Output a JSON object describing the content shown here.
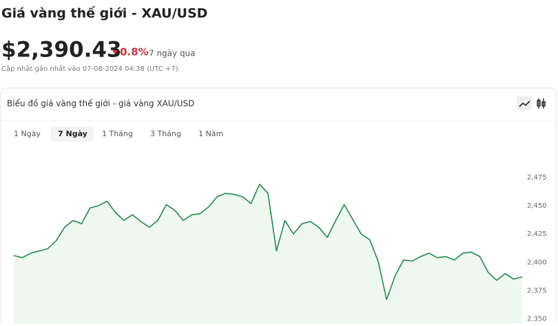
{
  "header": {
    "title": "Giá vàng thế giới - XAU/USD",
    "price": "$2,390.43",
    "change": "0.8%",
    "period": "7 ngày qua",
    "updated": "Cập nhật gần nhất vào 07-08-2024 04:38 (UTC +7)"
  },
  "card": {
    "title": "Biểu đồ giá vàng thế giới - giá vàng XAU/USD",
    "tabs": [
      "1 Ngày",
      "7 Ngày",
      "1 Tháng",
      "3 Tháng",
      "1 Năm"
    ],
    "active_tab": 1
  },
  "chart_data": {
    "type": "line",
    "color": "#1f8a4c",
    "area_color": "#eef7f0",
    "values": [
      2406,
      2404,
      2408,
      2410,
      2412,
      2419,
      2431,
      2437,
      2434,
      2448,
      2450,
      2454,
      2444,
      2437,
      2442,
      2436,
      2431,
      2437,
      2451,
      2446,
      2437,
      2442,
      2443,
      2449,
      2458,
      2461,
      2460,
      2458,
      2452,
      2469,
      2461,
      2410,
      2437,
      2425,
      2434,
      2436,
      2431,
      2422,
      2437,
      2451,
      2438,
      2425,
      2420,
      2401,
      2367,
      2388,
      2402,
      2401,
      2405,
      2408,
      2404,
      2405,
      2402,
      2408,
      2409,
      2405,
      2391,
      2384,
      2390,
      2385,
      2387
    ],
    "ylim": [
      2346,
      2500
    ],
    "yticks": [
      {
        "value": 2350,
        "label": "2,350"
      },
      {
        "value": 2375,
        "label": "2,375"
      },
      {
        "value": 2400,
        "label": "2,400"
      },
      {
        "value": 2425,
        "label": "2,425"
      },
      {
        "value": 2450,
        "label": "2,450"
      },
      {
        "value": 2475,
        "label": "2,475"
      }
    ]
  }
}
